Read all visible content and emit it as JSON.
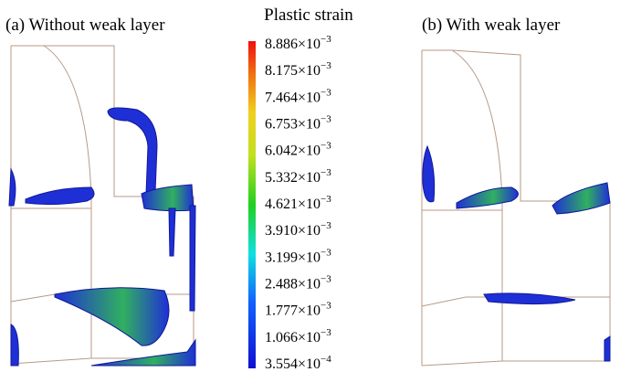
{
  "panels": [
    {
      "title": "(a) Without weak layer"
    },
    {
      "title": "(b) With weak layer"
    }
  ],
  "colorbar": {
    "title": "Plastic strain",
    "labels": [
      {
        "base": "8.886×10",
        "exponent": "−3"
      },
      {
        "base": "8.175×10",
        "exponent": "−3"
      },
      {
        "base": "7.464×10",
        "exponent": "−3"
      },
      {
        "base": "6.753×10",
        "exponent": "−3"
      },
      {
        "base": "6.042×10",
        "exponent": "−3"
      },
      {
        "base": "5.332×10",
        "exponent": "−3"
      },
      {
        "base": "4.621×10",
        "exponent": "−3"
      },
      {
        "base": "3.910×10",
        "exponent": "−3"
      },
      {
        "base": "3.199×10",
        "exponent": "−3"
      },
      {
        "base": "2.488×10",
        "exponent": "−3"
      },
      {
        "base": "1.777×10",
        "exponent": "−3"
      },
      {
        "base": "1.066×10",
        "exponent": "−3"
      },
      {
        "base": "3.554×10",
        "exponent": "−4"
      }
    ]
  }
}
